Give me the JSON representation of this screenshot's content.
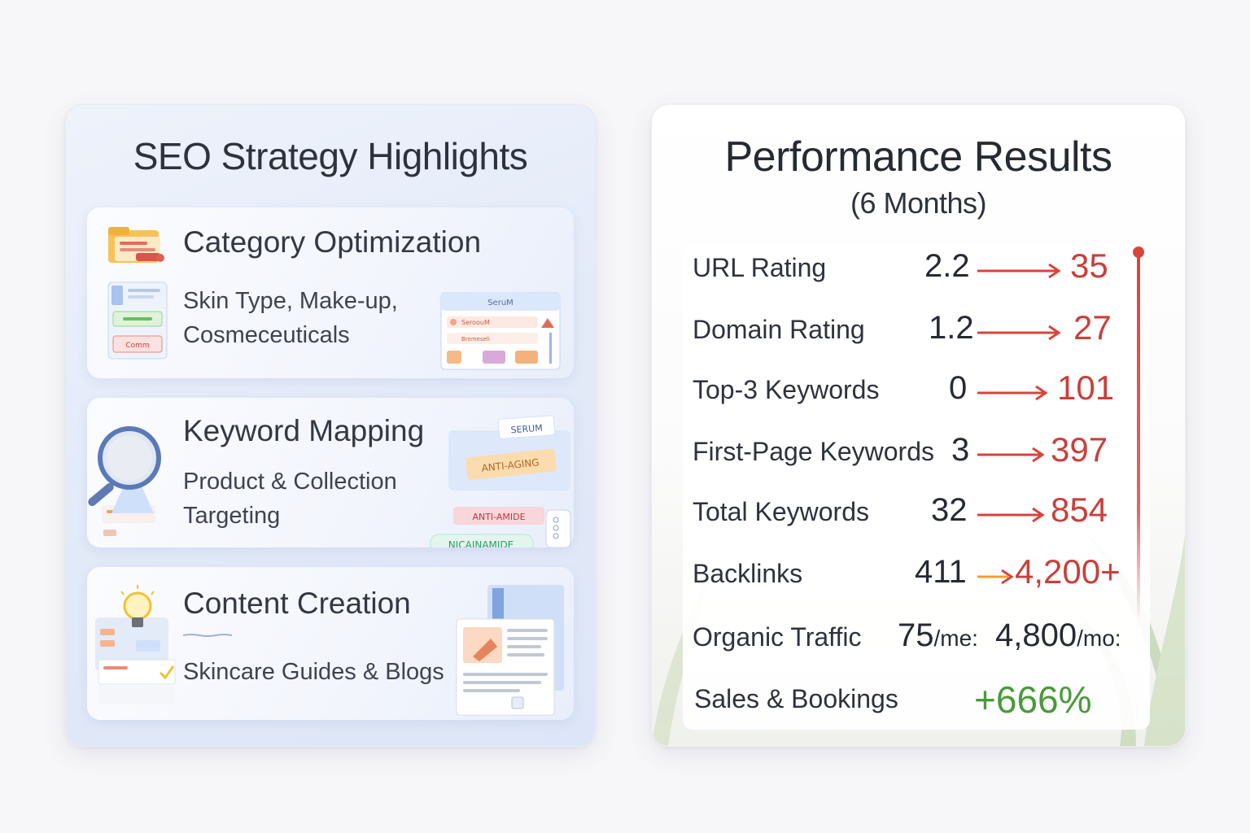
{
  "left": {
    "title": "SEO Strategy Highlights",
    "cards": [
      {
        "title": "Category Optimization",
        "desc_lines": [
          "Skin Type, Make-up,",
          "Cosmeceuticals"
        ],
        "widget_title": "SeruM",
        "widget_items": [
          "SeroouM",
          "Bremeseli"
        ],
        "doc_button": "Comm"
      },
      {
        "title": "Keyword Mapping",
        "desc_lines": [
          "Product & Collection",
          "Targeting"
        ],
        "tags": [
          "SERUM",
          "ANTI-AGING",
          "ANTI-AMIDE",
          "NICAINAMIDE"
        ]
      },
      {
        "title": "Content Creation",
        "desc_lines": [
          "Skincare Guides & Blogs"
        ]
      }
    ]
  },
  "right": {
    "title": "Performance Results",
    "subtitle": "(6 Months)",
    "metrics": [
      {
        "label": "URL Rating",
        "old": "2.2",
        "new": "35"
      },
      {
        "label": "Domain Rating",
        "old": "1.2",
        "new": "27"
      },
      {
        "label": "Top-3 Keywords",
        "old": "0",
        "new": "101"
      },
      {
        "label": "First-Page Keywords",
        "old": "3",
        "new": "397"
      },
      {
        "label": "Total Keywords",
        "old": "32",
        "new": "854"
      },
      {
        "label": "Backlinks",
        "old": "411",
        "new": "4,200+"
      },
      {
        "label": "Organic Traffic",
        "old": "75",
        "old_unit": "/me:",
        "new": "4,800",
        "new_unit": "/mo:"
      },
      {
        "label": "Sales & Bookings",
        "new": "+666%"
      }
    ],
    "colors": {
      "increase": "#c9403b",
      "arrow": "#d7453d",
      "arrow_backlinks": "#f0a030",
      "sales": "#4a9a3a"
    }
  }
}
